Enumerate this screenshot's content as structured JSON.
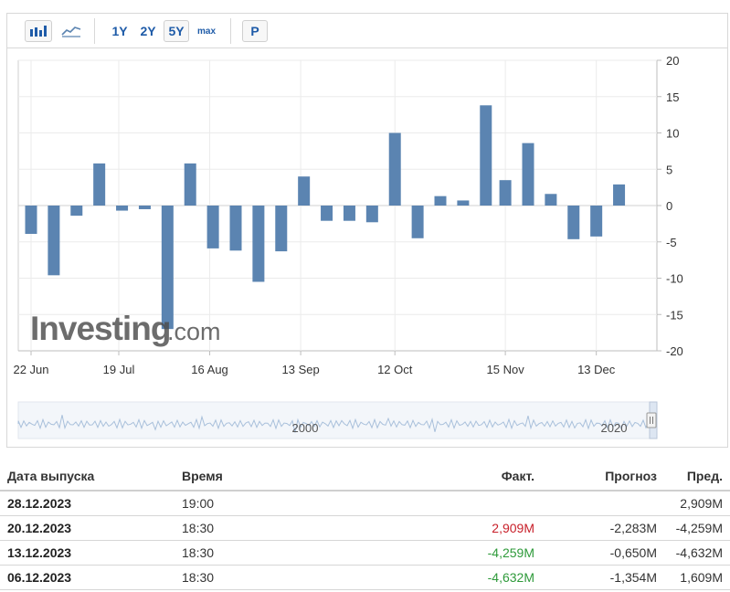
{
  "toolbar": {
    "bar_chart_icon": "bar-chart-icon",
    "line_chart_icon": "line-chart-icon",
    "ranges": [
      "1Y",
      "2Y",
      "5Y",
      "max"
    ],
    "active_range": "5Y",
    "p_label": "P"
  },
  "watermark": {
    "brand": "Investing",
    "suffix": ".com"
  },
  "colors": {
    "bar": "#5b84b1",
    "negative": "#c8202a",
    "positive": "#2e9a3a",
    "link": "#1e5ba8"
  },
  "chart_data": {
    "type": "bar",
    "x": [
      "2023-06-22",
      "2023-06-29",
      "2023-07-06",
      "2023-07-13",
      "2023-07-20",
      "2023-07-27",
      "2023-08-03",
      "2023-08-10",
      "2023-08-17",
      "2023-08-24",
      "2023-08-31",
      "2023-09-07",
      "2023-09-14",
      "2023-09-21",
      "2023-09-28",
      "2023-10-05",
      "2023-10-12",
      "2023-10-19",
      "2023-10-26",
      "2023-11-02",
      "2023-11-09",
      "2023-11-15",
      "2023-11-22",
      "2023-11-29",
      "2023-12-06",
      "2023-12-13",
      "2023-12-20",
      "2023-12-28"
    ],
    "values": [
      -3.9,
      -9.6,
      -1.4,
      5.8,
      -0.7,
      -0.5,
      -17.0,
      5.8,
      -5.9,
      -6.2,
      -10.5,
      -6.3,
      4.0,
      -2.1,
      -2.1,
      -2.3,
      10.0,
      -4.5,
      1.3,
      0.7,
      13.8,
      3.5,
      8.6,
      1.6,
      -4.632,
      -4.259,
      2.909,
      null
    ],
    "xtick_labels": [
      "22 Jun",
      "19 Jul",
      "16 Aug",
      "13 Sep",
      "12 Oct",
      "15 Nov",
      "13 Dec"
    ],
    "xtick_dates": [
      "2023-06-22",
      "2023-07-19",
      "2023-08-16",
      "2023-09-13",
      "2023-10-12",
      "2023-11-15",
      "2023-12-13"
    ],
    "ylim": [
      -20,
      20
    ],
    "yticks": [
      20,
      15,
      10,
      5,
      0,
      -5,
      -10,
      -15,
      -20
    ],
    "grid": true,
    "navigator_labels": [
      "2000",
      "2020"
    ]
  },
  "table": {
    "headers": [
      "Дата выпуска",
      "Время",
      "Факт.",
      "Прогноз",
      "Пред."
    ],
    "rows": [
      {
        "date": "28.12.2023",
        "time": "19:00",
        "actual": "",
        "actual_color": "",
        "forecast": "",
        "previous": "2,909M"
      },
      {
        "date": "20.12.2023",
        "time": "18:30",
        "actual": "2,909M",
        "actual_color": "neg",
        "forecast": "-2,283M",
        "previous": "-4,259M"
      },
      {
        "date": "13.12.2023",
        "time": "18:30",
        "actual": "-4,259M",
        "actual_color": "pos",
        "forecast": "-0,650M",
        "previous": "-4,632M"
      },
      {
        "date": "06.12.2023",
        "time": "18:30",
        "actual": "-4,632M",
        "actual_color": "pos",
        "forecast": "-1,354M",
        "previous": "1,609M"
      }
    ]
  }
}
